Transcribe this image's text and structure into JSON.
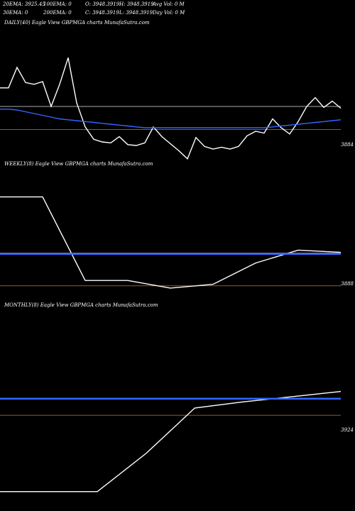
{
  "header": {
    "row1": [
      "20EMA: 3925.45",
      "100EMA: 0",
      "O: 3948.3919",
      "H: 3948.3919",
      "Avg Vol: 0  M"
    ],
    "row2": [
      "30EMA: 0",
      "200EMA: 0",
      "C: 3948.3919",
      "L: 3948.3919",
      "Day Vol: 0  M"
    ]
  },
  "chart_data": [
    {
      "type": "line",
      "title": "DAILY(40) Eagle   View  GBPMGA charts MunafaSutra.com",
      "ylabel_value": "3884",
      "series": [
        {
          "color": "#ffffff",
          "values": [
            3931,
            3931,
            3954,
            3937,
            3935,
            3938,
            3910,
            3935,
            3965,
            3914,
            3887,
            3873,
            3870,
            3869,
            3876,
            3867,
            3866,
            3869,
            3887,
            3876,
            3868,
            3860,
            3851,
            3875,
            3865,
            3862,
            3864,
            3862,
            3865,
            3877,
            3882,
            3880,
            3896,
            3886,
            3879,
            3893,
            3910,
            3920,
            3909,
            3916,
            3908
          ]
        },
        {
          "color": "#3366ff",
          "values": [
            3907,
            3907,
            3906,
            3904,
            3902,
            3900,
            3898,
            3896,
            3895,
            3894,
            3893,
            3892,
            3891,
            3890,
            3889,
            3888,
            3887,
            3886,
            3886,
            3886,
            3886,
            3886,
            3886,
            3886,
            3886,
            3886,
            3886,
            3886,
            3886,
            3886,
            3886,
            3886,
            3887,
            3888,
            3889,
            3890,
            3891,
            3892,
            3893,
            3894,
            3895
          ]
        }
      ],
      "hlines": [
        {
          "color": "#aaaaaa",
          "value": 3910
        },
        {
          "color": "#c8782a",
          "value": 3884
        }
      ]
    },
    {
      "type": "line",
      "title": "WEEKLY(8) Eagle   View  GBPMGA charts MunafaSutra.com",
      "ylabel_value": "3888",
      "series": [
        {
          "color": "#ffffff",
          "values": [
            4005,
            4005,
            3895,
            3895,
            3885,
            3890,
            3918,
            3935,
            3932
          ]
        },
        {
          "color": "#3366ff",
          "values": [
            3930,
            3930,
            3930,
            3930,
            3930,
            3930,
            3930,
            3930,
            3930
          ]
        }
      ],
      "hlines": [
        {
          "color": "#aaaaaa",
          "value": 3931
        },
        {
          "color": "#c8782a",
          "value": 3888
        }
      ]
    },
    {
      "type": "line",
      "title": "MONTHLY(8) Eagle   View  GBPMGA charts MunafaSutra.com",
      "ylabel_value": "3924",
      "series": [
        {
          "color": "#ffffff",
          "values": [
            3850,
            3850,
            3850,
            3887,
            3931,
            3937,
            3942,
            3947
          ]
        },
        {
          "color": "#3366ff",
          "values": [
            3940,
            3940,
            3940,
            3940,
            3940,
            3940,
            3940,
            3940
          ]
        }
      ],
      "hlines": [
        {
          "color": "#aaaaaa",
          "value": 3940.5
        },
        {
          "color": "#c8782a",
          "value": 3924
        }
      ]
    }
  ]
}
